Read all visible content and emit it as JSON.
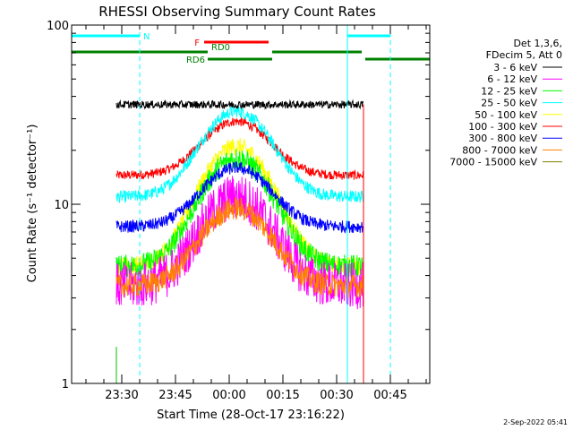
{
  "chart_data": {
    "type": "line",
    "title": "RHESSI Observing Summary Count Rates",
    "xlabel": "Start Time (28-Oct-17 23:16:22)",
    "ylabel": "Count Rate (s⁻¹ detector⁻¹)",
    "y_scale": "log",
    "ylim": [
      1,
      100
    ],
    "y_ticks": [
      {
        "v": 1,
        "label": "1"
      },
      {
        "v": 10,
        "label": "10"
      },
      {
        "v": 100,
        "label": "100"
      }
    ],
    "xlim_minutes": [
      -44,
      56
    ],
    "x_ticks": [
      {
        "m": -30,
        "label": "23:30"
      },
      {
        "m": -15,
        "label": "23:45"
      },
      {
        "m": 0,
        "label": "00:00"
      },
      {
        "m": 15,
        "label": "00:15"
      },
      {
        "m": 30,
        "label": "00:30"
      },
      {
        "m": 45,
        "label": "00:45"
      }
    ],
    "data_range_minutes": [
      -31.5,
      37.5
    ],
    "flare_peak_minute": 2,
    "legend": {
      "position": "right",
      "header": [
        "Det 1,3,6,",
        "FDecim 5, Att 0"
      ],
      "entries": [
        {
          "label": "3 - 6 keV",
          "color": "#000000",
          "base": 36,
          "peak": 36,
          "noise": 0.05
        },
        {
          "label": "6 - 12 keV",
          "color": "#ff00ff",
          "base": 3.5,
          "peak": 11,
          "noise": 0.3
        },
        {
          "label": "12 - 25 keV",
          "color": "#00ff00",
          "base": 4.5,
          "peak": 18,
          "noise": 0.15
        },
        {
          "label": "25 - 50 keV",
          "color": "#00ffff",
          "base": 11,
          "peak": 33,
          "noise": 0.08
        },
        {
          "label": "50 - 100 keV",
          "color": "#ffff00",
          "base": 4.5,
          "peak": 21,
          "noise": 0.12
        },
        {
          "label": "100 - 300 keV",
          "color": "#ff0000",
          "base": 14.5,
          "peak": 29,
          "noise": 0.06
        },
        {
          "label": "300 - 800 keV",
          "color": "#0000ff",
          "base": 7.5,
          "peak": 16,
          "noise": 0.08
        },
        {
          "label": "800 - 7000 keV",
          "color": "#ff8000",
          "base": 3.5,
          "peak": 9.5,
          "noise": 0.15
        },
        {
          "label": "7000 - 15000 keV",
          "color": "#808000",
          "base": 0,
          "peak": 0,
          "noise": 0
        }
      ]
    },
    "flags": [
      {
        "label": "N",
        "color": "#00ffff",
        "y": 40,
        "segments": [
          [
            -44,
            -25
          ],
          [
            33,
            45
          ]
        ]
      },
      {
        "label": "F",
        "color": "#ff0000",
        "y": 47,
        "segments": [
          [
            -7,
            11
          ]
        ]
      },
      {
        "label": "RD0",
        "color": "#008000",
        "y": 58,
        "segments": [
          [
            -44,
            -6
          ],
          [
            12,
            37
          ]
        ]
      },
      {
        "label": "RD6",
        "color": "#008000",
        "y": 66,
        "segments": [
          [
            -6,
            12
          ],
          [
            38,
            56
          ]
        ]
      }
    ],
    "vertical_lines": [
      {
        "m": -44,
        "color": "#00ffff",
        "dashed": false
      },
      {
        "m": -25,
        "color": "#00ffff",
        "dashed": true
      },
      {
        "m": 33,
        "color": "#00ffff",
        "dashed": false
      },
      {
        "m": 45,
        "color": "#00ffff",
        "dashed": true
      },
      {
        "m": -31.5,
        "color": "#00c000",
        "dashed": false,
        "from_value": 1,
        "to_value": 1.6
      },
      {
        "m": 37.5,
        "color": "#ff0000",
        "dashed": false,
        "from_value": 1,
        "to_value": 36
      }
    ]
  },
  "footer": {
    "date": "2-Sep-2022 05:41"
  }
}
